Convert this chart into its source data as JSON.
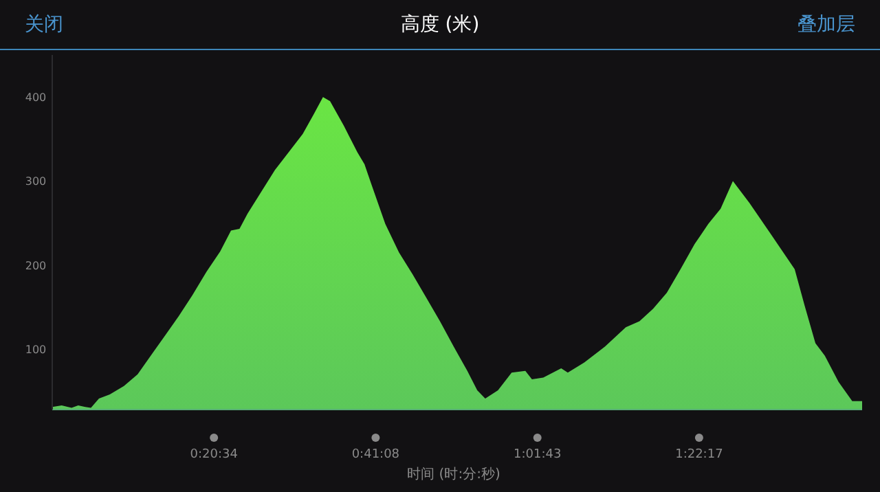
{
  "chart_data": {
    "type": "area",
    "title": "高度 (米)",
    "xlabel": "时间 (时:分:秒)",
    "annotations": [
      "关闭",
      "叠加层"
    ],
    "xlim": [
      0,
      1.717
    ],
    "ylim": [
      28,
      450
    ],
    "xticks": [
      {
        "value": 0.3428,
        "label": "0:20:34"
      },
      {
        "value": 0.6856,
        "label": "0:41:08"
      },
      {
        "value": 1.0286,
        "label": "1:01:43"
      },
      {
        "value": 1.3714,
        "label": "1:22:17"
      }
    ],
    "yticks": [
      100,
      200,
      300,
      400
    ],
    "grid": false,
    "series": [
      {
        "color": "#5cc85a",
        "x": [
          0,
          0.02,
          0.041,
          0.055,
          0.07,
          0.082,
          0.099,
          0.122,
          0.152,
          0.181,
          0.21,
          0.239,
          0.268,
          0.297,
          0.327,
          0.356,
          0.379,
          0.397,
          0.414,
          0.443,
          0.472,
          0.501,
          0.531,
          0.554,
          0.574,
          0.589,
          0.618,
          0.647,
          0.662,
          0.676,
          0.706,
          0.735,
          0.764,
          0.793,
          0.822,
          0.851,
          0.88,
          0.901,
          0.918,
          0.945,
          0.974,
          1.003,
          1.017,
          1.041,
          1.079,
          1.093,
          1.128,
          1.172,
          1.216,
          1.245,
          1.274,
          1.303,
          1.332,
          1.362,
          1.391,
          1.417,
          1.443,
          1.478,
          1.522,
          1.574,
          1.595,
          1.618,
          1.638,
          1.667,
          1.696,
          1.717
        ],
        "values": [
          31,
          33,
          30,
          33,
          31,
          30,
          41,
          46,
          56,
          70,
          93,
          116,
          139,
          164,
          192,
          216,
          241,
          243,
          261,
          287,
          313,
          334,
          356,
          379,
          400,
          395,
          366,
          334,
          320,
          297,
          249,
          215,
          189,
          161,
          133,
          103,
          74,
          51,
          41,
          51,
          72,
          74,
          64,
          66,
          77,
          72,
          84,
          103,
          126,
          133,
          148,
          167,
          195,
          225,
          249,
          267,
          300,
          274,
          238,
          195,
          152,
          107,
          92,
          61,
          38,
          38
        ]
      }
    ]
  }
}
